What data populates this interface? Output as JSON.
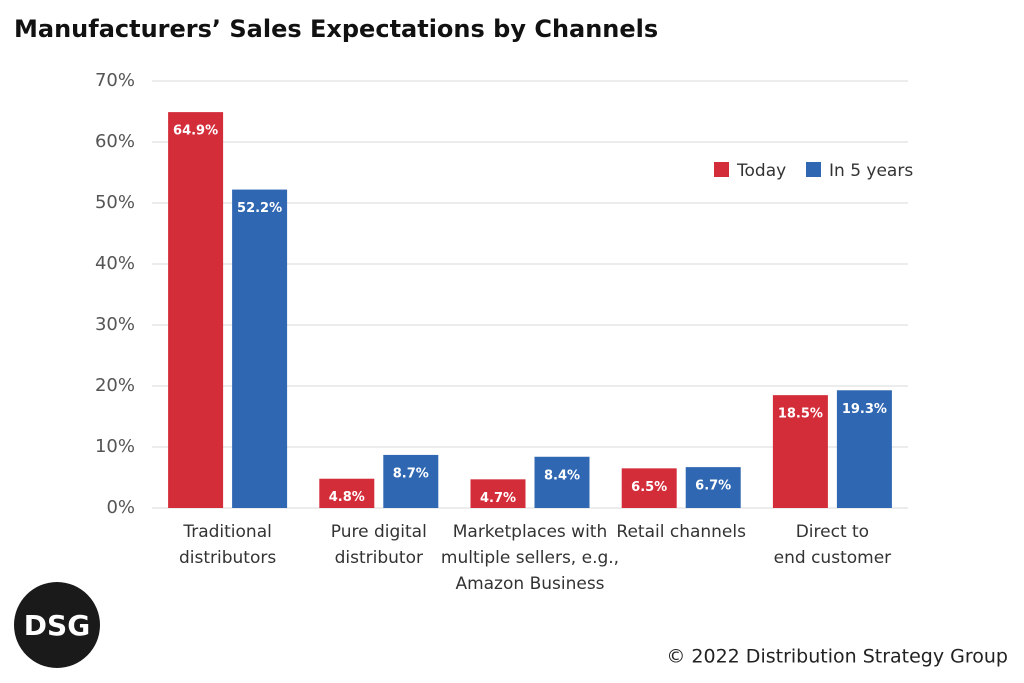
{
  "chart_data": {
    "type": "bar",
    "title": "Manufacturers’ Sales Expectations by Channels",
    "categories": [
      [
        "Traditional",
        "distributors"
      ],
      [
        "Pure digital",
        "distributor"
      ],
      [
        "Marketplaces with",
        "multiple sellers, e.g.,",
        "Amazon Business"
      ],
      [
        "Retail channels"
      ],
      [
        "Direct to",
        "end customer"
      ]
    ],
    "series": [
      {
        "name": "Today",
        "color": "#d42d3a",
        "values": [
          64.9,
          4.8,
          4.7,
          6.5,
          18.5
        ],
        "value_labels": [
          "64.9%",
          "4.8%",
          "4.7%",
          "6.5%",
          "18.5%"
        ]
      },
      {
        "name": "In 5 years",
        "color": "#2f67b2",
        "values": [
          52.2,
          8.7,
          8.4,
          6.7,
          19.3
        ],
        "value_labels": [
          "52.2%",
          "8.7%",
          "8.4%",
          "6.7%",
          "19.3%"
        ]
      }
    ],
    "ylim": [
      0,
      70
    ],
    "yticks": [
      {
        "value": 0,
        "label": "0%"
      },
      {
        "value": 10,
        "label": "10%"
      },
      {
        "value": 20,
        "label": "20%"
      },
      {
        "value": 30,
        "label": "30%"
      },
      {
        "value": 40,
        "label": "40%"
      },
      {
        "value": 50,
        "label": "50%"
      },
      {
        "value": 60,
        "label": "60%"
      },
      {
        "value": 70,
        "label": "70%"
      }
    ],
    "grid": true,
    "legend": "upper right"
  },
  "logo": "DSG",
  "footer": "© 2022 Distribution Strategy Group"
}
